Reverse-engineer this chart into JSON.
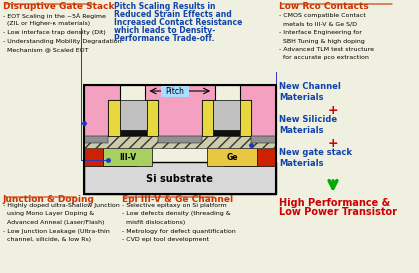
{
  "bg_color": "#f0f0e0",
  "top_left_title": "Disruptive Gate Stack",
  "top_left_bullets": [
    "- EOT Scaling in the ~5Å Regime",
    "  (ZIL or Higher-κ materials)",
    "- Low interface trap density (Dit)",
    "- Understanding Mobility Degradation",
    "  Mechanism @ Scaled EOT"
  ],
  "top_center_text_lines": [
    "Pitch Scaling Results in",
    "Reduced Strain Effects and",
    "Increased Contact Resistance",
    "which leads to Density-",
    "Performance Trade-off."
  ],
  "top_right_title": "Low Rco Contacts",
  "top_right_bullets": [
    "- CMOS compatible Contact",
    "  metals to III-V & Ge S/D",
    "- Interface Engineering for",
    "  SBH Tuning & high doping",
    "- Advanced TLM test structure",
    "  for accurate ρco extraction"
  ],
  "right_col_lines": [
    "New Channel",
    "Materials",
    "+",
    "New Silicide",
    "Materials",
    "+",
    "New gate stack",
    "Materials"
  ],
  "arrow_label_lines": [
    "High Performance &",
    "Low Power Transistor"
  ],
  "bottom_left_title": "Junction & Doping",
  "bottom_left_bullets": [
    "- Highly doped ultra-Shallow Junction",
    "  using Mono Layer Doping &",
    "  Advanced Anneal (Laser/Flash)",
    "- Low Junction Leakage (Ultra-thin",
    "  channel, silicide, & low Rs)"
  ],
  "bottom_center_title": "Epi III-V & Ge Channel",
  "bottom_center_bullets": [
    "- Selective epitaxy on Si platform",
    "- Low defects density (threading &",
    "  misfit dislocations)",
    "- Metrology for defect quantification",
    "- CVD epi tool development"
  ],
  "colors": {
    "pink": "#f4a0c0",
    "gray_gate": "#c0c0c0",
    "red_sd": "#cc2200",
    "si_bg": "#d8d8d8",
    "iii_v_green": "#a8d060",
    "ge_yellow": "#e8c840",
    "spacer_yellow": "#e8d840",
    "silicide_gray": "#909090",
    "hatch_bg": "#ccccaa"
  }
}
